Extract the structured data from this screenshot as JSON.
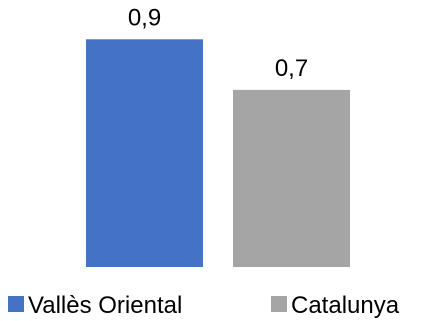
{
  "chart_data": {
    "type": "bar",
    "title": "",
    "xlabel": "",
    "ylabel": "",
    "ylim": [
      0,
      1.0
    ],
    "grid": false,
    "legend_position": "bottom",
    "series": [
      {
        "name": "Vallès Oriental",
        "value": 0.9,
        "label": "0,9",
        "color": "#4472C4"
      },
      {
        "name": "Catalunya",
        "value": 0.7,
        "label": "0,7",
        "color": "#A5A5A5"
      }
    ]
  }
}
